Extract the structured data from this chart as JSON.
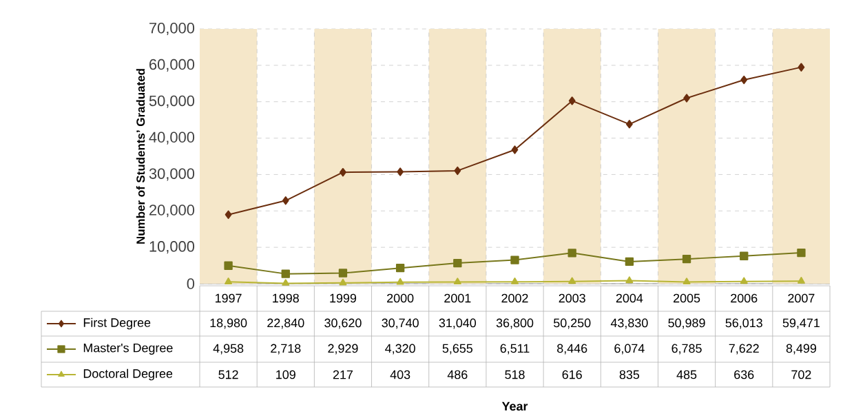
{
  "chart_data": {
    "type": "line",
    "annotations": [
      "Year"
    ],
    "ylabel": "Number of Students’ Graduated",
    "categories": [
      "1997",
      "1998",
      "1999",
      "2000",
      "2001",
      "2002",
      "2003",
      "2004",
      "2005",
      "2006",
      "2007"
    ],
    "series": [
      {
        "name": "First Degree",
        "color": "#6b2e0e",
        "marker": "diamond",
        "values": [
          18980,
          22840,
          30620,
          30740,
          31040,
          36800,
          50250,
          43830,
          50989,
          56013,
          59471
        ],
        "value_labels": [
          "18,980",
          "22,840",
          "30,620",
          "30,740",
          "31,040",
          "36,800",
          "50,250",
          "43,830",
          "50,989",
          "56,013",
          "59,471"
        ]
      },
      {
        "name": "Master's Degree",
        "color": "#77771a",
        "marker": "square",
        "values": [
          4958,
          2718,
          2929,
          4320,
          5655,
          6511,
          8446,
          6074,
          6785,
          7622,
          8499
        ],
        "value_labels": [
          "4,958",
          "2,718",
          "2,929",
          "4,320",
          "5,655",
          "6,511",
          "8,446",
          "6,074",
          "6,785",
          "7,622",
          "8,499"
        ]
      },
      {
        "name": "Doctoral Degree",
        "color": "#b8b535",
        "marker": "triangle",
        "values": [
          512,
          109,
          217,
          403,
          486,
          518,
          616,
          835,
          485,
          636,
          702
        ],
        "value_labels": [
          "512",
          "109",
          "217",
          "403",
          "486",
          "518",
          "616",
          "835",
          "485",
          "636",
          "702"
        ]
      }
    ],
    "ylim": [
      0,
      70000
    ],
    "yticks": [
      0,
      {
        "value": 10000,
        "label": "10,000"
      },
      {
        "value": 20000,
        "label": "20,000"
      },
      {
        "value": 30000,
        "label": "30,000"
      },
      {
        "value": 40000,
        "label": "40,000"
      },
      {
        "value": 50000,
        "label": "50,000"
      },
      {
        "value": 60000,
        "label": "60,000"
      },
      {
        "value": 70000,
        "label": "70,000"
      }
    ],
    "bands": [
      {
        "axis": "x",
        "from": "1997",
        "to": "1997",
        "color": "#f5e7c9"
      },
      {
        "axis": "x",
        "from": "1999",
        "to": "1999",
        "color": "#f5e7c9"
      },
      {
        "axis": "x",
        "from": "2001",
        "to": "2001",
        "color": "#f5e7c9"
      },
      {
        "axis": "x",
        "from": "2003",
        "to": "2003",
        "color": "#f5e7c9"
      },
      {
        "axis": "x",
        "from": "2005",
        "to": "2005",
        "color": "#f5e7c9"
      },
      {
        "axis": "x",
        "from": "2007",
        "to": "2007",
        "color": "#f5e7c9"
      }
    ],
    "grid": "y",
    "legend": "bottom left",
    "line_style": "solid"
  }
}
